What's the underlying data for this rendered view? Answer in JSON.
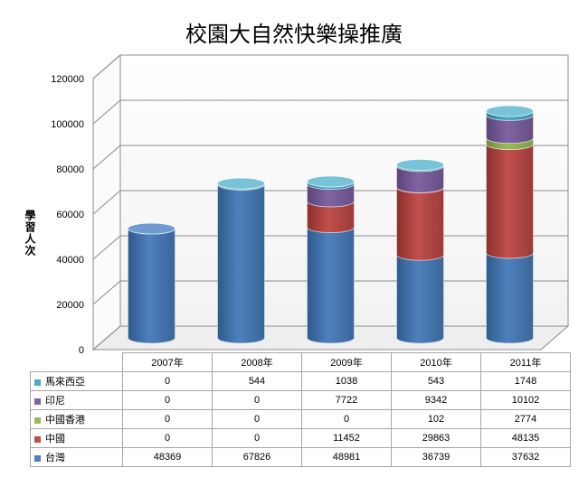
{
  "chart_data": {
    "type": "bar",
    "stacked": true,
    "title": "校園大自然快樂操推廣",
    "xlabel": "",
    "ylabel": "學習人次",
    "ylim": [
      0,
      120000
    ],
    "yticks": [
      "0",
      "20000",
      "40000",
      "60000",
      "80000",
      "100000",
      "120000"
    ],
    "categories": [
      "2007年",
      "2008年",
      "2009年",
      "2010年",
      "2011年"
    ],
    "series": [
      {
        "name": "台灣",
        "color": "#4f81bd",
        "values": [
          48369,
          67826,
          48981,
          36739,
          37632
        ]
      },
      {
        "name": "中國",
        "color": "#c0504d",
        "values": [
          0,
          0,
          11452,
          29863,
          48135
        ]
      },
      {
        "name": "中國香港",
        "color": "#9bbb59",
        "values": [
          0,
          0,
          0,
          102,
          2774
        ]
      },
      {
        "name": "印尼",
        "color": "#8064a2",
        "values": [
          0,
          0,
          7722,
          9342,
          10102
        ]
      },
      {
        "name": "馬來西亞",
        "color": "#4bacc6",
        "values": [
          0,
          544,
          1038,
          543,
          1748
        ]
      }
    ],
    "grid": true,
    "legend": "data-table-left"
  }
}
